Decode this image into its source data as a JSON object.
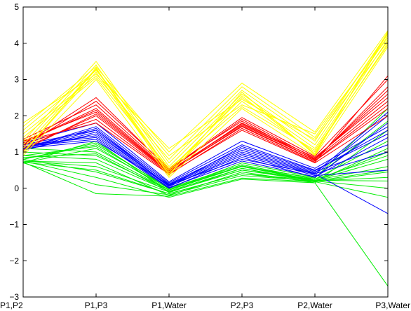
{
  "chart_data": {
    "type": "line",
    "subtype": "parallel-coordinates",
    "categories": [
      "P1,P2",
      "P1,P3",
      "P1,Water",
      "P2,P3",
      "P2,Water",
      "P3,Water"
    ],
    "ylim": [
      -3,
      5
    ],
    "yticks": [
      "−3",
      "−2",
      "−1",
      "0",
      "1",
      "2",
      "3",
      "4",
      "5"
    ],
    "grid": false,
    "legend": "none",
    "groups": [
      {
        "color": "#00ee00",
        "lines": [
          [
            0.75,
            0.3,
            -0.25,
            0.25,
            0.15,
            -2.7
          ],
          [
            0.72,
            -0.15,
            -0.22,
            0.28,
            0.18,
            -0.25
          ],
          [
            0.7,
            0.1,
            -0.18,
            0.35,
            0.2,
            0.0
          ],
          [
            0.8,
            0.45,
            -0.15,
            0.4,
            0.22,
            0.2
          ],
          [
            0.75,
            0.6,
            -0.1,
            0.5,
            0.2,
            0.3
          ],
          [
            0.9,
            0.8,
            -0.08,
            0.55,
            0.2,
            0.5
          ],
          [
            1.0,
            0.9,
            -0.05,
            0.6,
            0.22,
            0.6
          ],
          [
            1.1,
            1.0,
            -0.05,
            0.62,
            0.22,
            0.8
          ],
          [
            0.7,
            1.1,
            0.0,
            0.65,
            0.25,
            0.9
          ],
          [
            0.8,
            1.25,
            -0.02,
            0.6,
            0.2,
            1.0
          ],
          [
            0.7,
            1.3,
            -0.12,
            0.55,
            0.18,
            1.1
          ],
          [
            0.85,
            0.95,
            -0.1,
            0.5,
            0.25,
            1.3
          ],
          [
            0.75,
            0.7,
            -0.2,
            0.45,
            0.15,
            1.6
          ],
          [
            0.9,
            1.15,
            -0.05,
            0.7,
            0.3,
            1.85
          ],
          [
            0.8,
            1.2,
            0.02,
            0.6,
            0.28,
            2.2
          ],
          [
            0.72,
            0.5,
            -0.15,
            0.4,
            0.18,
            0.45
          ]
        ]
      },
      {
        "color": "#0000ff",
        "lines": [
          [
            1.1,
            1.3,
            0.1,
            0.8,
            0.4,
            -0.7
          ],
          [
            1.15,
            1.45,
            0.05,
            0.9,
            0.35,
            0.5
          ],
          [
            1.05,
            1.5,
            0.08,
            1.0,
            0.4,
            1.0
          ],
          [
            1.2,
            1.6,
            0.12,
            1.1,
            0.45,
            1.2
          ],
          [
            1.1,
            1.7,
            0.15,
            1.2,
            0.5,
            1.5
          ],
          [
            1.25,
            1.8,
            0.18,
            1.3,
            0.55,
            1.7
          ],
          [
            1.15,
            1.35,
            0.0,
            0.85,
            0.3,
            1.8
          ],
          [
            1.05,
            1.55,
            0.05,
            0.95,
            0.38,
            2.0
          ],
          [
            1.1,
            1.65,
            0.1,
            1.05,
            0.42,
            2.1
          ],
          [
            1.2,
            1.4,
            0.02,
            0.75,
            0.32,
            1.4
          ],
          [
            1.08,
            1.6,
            0.06,
            1.15,
            0.48,
            1.6
          ]
        ]
      },
      {
        "color": "#ff0000",
        "lines": [
          [
            1.2,
            1.9,
            0.4,
            1.6,
            0.7,
            2.0
          ],
          [
            1.3,
            2.1,
            0.45,
            1.7,
            0.75,
            2.2
          ],
          [
            1.25,
            2.2,
            0.48,
            1.75,
            0.8,
            2.4
          ],
          [
            1.1,
            2.0,
            0.42,
            1.8,
            0.85,
            2.5
          ],
          [
            1.35,
            2.3,
            0.5,
            1.9,
            0.82,
            2.6
          ],
          [
            1.15,
            2.4,
            0.55,
            1.85,
            0.78,
            2.8
          ],
          [
            1.2,
            2.5,
            0.52,
            1.95,
            0.88,
            3.0
          ],
          [
            1.3,
            1.8,
            0.38,
            1.65,
            0.72,
            3.1
          ],
          [
            1.05,
            2.05,
            0.44,
            1.72,
            0.76,
            2.3
          ],
          [
            1.25,
            2.15,
            0.46,
            1.78,
            0.8,
            2.7
          ]
        ]
      },
      {
        "color": "#ffff00",
        "lines": [
          [
            0.9,
            3.0,
            0.3,
            2.2,
            0.9,
            3.9
          ],
          [
            1.0,
            3.2,
            0.4,
            2.4,
            1.0,
            4.0
          ],
          [
            1.1,
            3.3,
            0.5,
            2.5,
            1.1,
            4.1
          ],
          [
            1.2,
            3.4,
            0.6,
            2.6,
            1.2,
            4.2
          ],
          [
            1.3,
            3.5,
            0.7,
            2.7,
            1.3,
            4.3
          ],
          [
            1.5,
            3.1,
            0.8,
            2.8,
            1.4,
            4.25
          ],
          [
            1.6,
            3.25,
            0.9,
            2.3,
            1.5,
            4.15
          ],
          [
            1.7,
            3.35,
            1.0,
            2.9,
            1.55,
            4.35
          ],
          [
            1.8,
            3.15,
            1.1,
            2.45,
            1.35,
            4.05
          ],
          [
            1.0,
            3.28,
            0.45,
            2.55,
            0.95,
            4.28
          ],
          [
            1.4,
            3.05,
            0.55,
            2.25,
            1.05,
            3.95
          ],
          [
            0.95,
            3.32,
            0.35,
            2.65,
            0.92,
            4.32
          ]
        ]
      }
    ]
  }
}
